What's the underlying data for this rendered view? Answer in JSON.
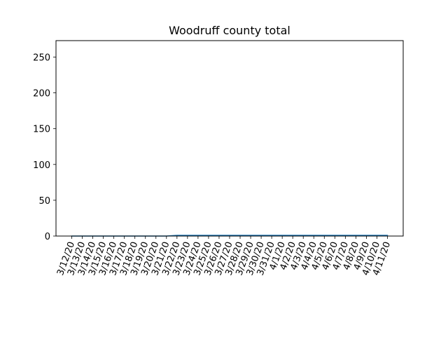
{
  "chart_data": {
    "type": "line",
    "title": "Woodruff county total",
    "xlabel": "",
    "ylabel": "",
    "categories": [
      "3/12/20",
      "3/13/20",
      "3/14/20",
      "3/15/20",
      "3/16/20",
      "3/17/20",
      "3/18/20",
      "3/19/20",
      "3/20/20",
      "3/21/20",
      "3/22/20",
      "3/23/20",
      "3/24/20",
      "3/25/20",
      "3/26/20",
      "3/27/20",
      "3/28/20",
      "3/29/20",
      "3/30/20",
      "3/31/20",
      "4/1/20",
      "4/2/20",
      "4/3/20",
      "4/4/20",
      "4/5/20",
      "4/6/20",
      "4/7/20",
      "4/8/20",
      "4/9/20",
      "4/10/20",
      "4/11/20"
    ],
    "series": [
      {
        "values": [
          0,
          0,
          0,
          0,
          0,
          0,
          0,
          0,
          0,
          0,
          1,
          1,
          1,
          1,
          1,
          1,
          1,
          1,
          1,
          1,
          1,
          1,
          1,
          1,
          1,
          1,
          1,
          1,
          1,
          1,
          1
        ],
        "color": "#1f77b4"
      }
    ],
    "ylim": [
      0,
      273
    ],
    "yticks": [
      0,
      50,
      100,
      150,
      200,
      250
    ],
    "grid": false,
    "legend": "none"
  }
}
